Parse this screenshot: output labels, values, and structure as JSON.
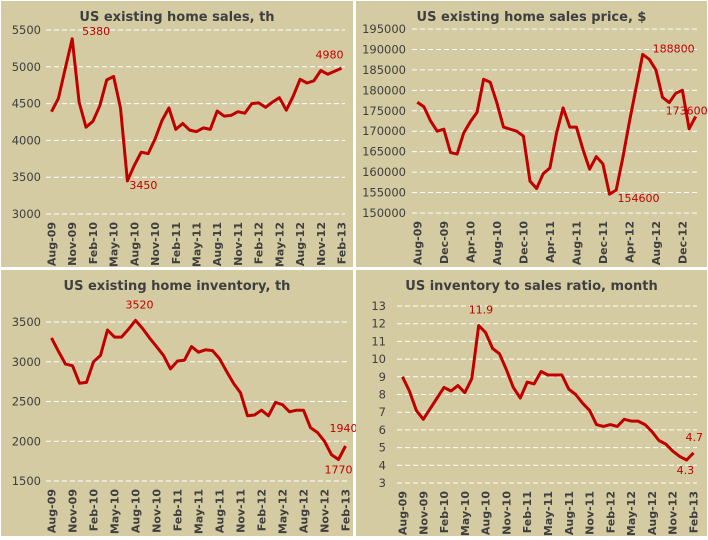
{
  "chart_data": [
    {
      "type": "line",
      "title": "US existing home sales, th",
      "ylim": [
        3000,
        5500
      ],
      "yticks": [
        3000,
        3500,
        4000,
        4500,
        5000,
        5500
      ],
      "grid": true,
      "start": "Aug-09",
      "tick_labels": [
        "Aug-09",
        "Nov-09",
        "Feb-10",
        "May-10",
        "Aug-10",
        "Nov-10",
        "Feb-11",
        "May-11",
        "Aug-11",
        "Nov-11",
        "Feb-12",
        "May-12",
        "Aug-12",
        "Nov-12",
        "Feb-13"
      ],
      "values": [
        4390,
        4570,
        4980,
        5380,
        4520,
        4180,
        4260,
        4470,
        4820,
        4870,
        4440,
        3450,
        3660,
        3840,
        3820,
        4020,
        4270,
        4440,
        4150,
        4230,
        4140,
        4120,
        4170,
        4150,
        4400,
        4330,
        4340,
        4390,
        4370,
        4500,
        4510,
        4450,
        4520,
        4580,
        4410,
        4600,
        4830,
        4780,
        4810,
        4950,
        4900,
        4940,
        4980
      ],
      "annotations": [
        {
          "index": 3,
          "text": "5380"
        },
        {
          "index": 11,
          "text": "3450"
        },
        {
          "index": 42,
          "text": "4980"
        }
      ],
      "line_color": "#c00000"
    },
    {
      "type": "line",
      "title": "US existing home sales price, $",
      "ylim": [
        150000,
        195000
      ],
      "yticks": [
        150000,
        155000,
        160000,
        165000,
        170000,
        175000,
        180000,
        185000,
        190000,
        195000
      ],
      "grid": true,
      "start": "Aug-09",
      "tick_labels": [
        "Aug-09",
        "Dec-09",
        "Apr-10",
        "Aug-10",
        "Dec-10",
        "Apr-11",
        "Aug-11",
        "Dec-11",
        "Apr-12",
        "Aug-12",
        "Dec-12"
      ],
      "values": [
        177100,
        176000,
        172500,
        170000,
        170500,
        164800,
        164400,
        169600,
        172300,
        174600,
        182700,
        182000,
        177000,
        171000,
        170500,
        170000,
        168800,
        157800,
        156000,
        159600,
        161000,
        169500,
        175700,
        171000,
        171000,
        165500,
        160700,
        163800,
        162000,
        154600,
        155600,
        163500,
        172300,
        180500,
        188800,
        187600,
        185000,
        178300,
        177000,
        179300,
        180000,
        170600,
        173600
      ],
      "annotations": [
        {
          "index": 34,
          "text": "188800"
        },
        {
          "index": 29,
          "text": "154600"
        },
        {
          "index": 42,
          "text": "173600"
        }
      ],
      "line_color": "#c00000"
    },
    {
      "type": "line",
      "title": "US existing home inventory, th",
      "ylim": [
        1500,
        3500
      ],
      "yticks": [
        1500,
        2000,
        2500,
        3000,
        3500
      ],
      "grid": true,
      "start": "Aug-09",
      "tick_labels": [
        "Aug-09",
        "Nov-09",
        "Feb-10",
        "May-10",
        "Aug-10",
        "Nov-10",
        "Feb-11",
        "May-11",
        "Aug-11",
        "Nov-11",
        "Feb-12",
        "May-12",
        "Aug-12",
        "Nov-12",
        "Feb-13"
      ],
      "values": [
        3300,
        3130,
        2970,
        2950,
        2730,
        2740,
        3000,
        3080,
        3400,
        3310,
        3310,
        3410,
        3520,
        3420,
        3300,
        3190,
        3080,
        2910,
        3010,
        3020,
        3190,
        3120,
        3150,
        3140,
        3040,
        2880,
        2730,
        2610,
        2320,
        2330,
        2390,
        2320,
        2490,
        2460,
        2370,
        2390,
        2390,
        2170,
        2110,
        2000,
        1830,
        1770,
        1940
      ],
      "annotations": [
        {
          "index": 12,
          "text": "3520"
        },
        {
          "index": 41,
          "text": "1770"
        },
        {
          "index": 42,
          "text": "1940"
        }
      ],
      "line_color": "#c00000"
    },
    {
      "type": "line",
      "title": "US inventory to sales ratio, month",
      "ylim": [
        3,
        13
      ],
      "yticks": [
        3,
        4,
        5,
        6,
        7,
        8,
        9,
        10,
        11,
        12,
        13
      ],
      "grid": true,
      "start": "Aug-09",
      "tick_labels": [
        "Aug-09",
        "Nov-09",
        "Feb-10",
        "May-10",
        "Aug-10",
        "Nov-10",
        "Feb-11",
        "May-11",
        "Aug-11",
        "Nov-11",
        "Feb-12",
        "May-12",
        "Aug-12",
        "Nov-12",
        "Feb-13"
      ],
      "values": [
        9.0,
        8.2,
        7.1,
        6.6,
        7.2,
        7.8,
        8.4,
        8.2,
        8.5,
        8.1,
        8.9,
        11.9,
        11.5,
        10.6,
        10.3,
        9.4,
        8.4,
        7.8,
        8.7,
        8.6,
        9.3,
        9.1,
        9.1,
        9.1,
        8.3,
        8.0,
        7.5,
        7.1,
        6.3,
        6.2,
        6.3,
        6.2,
        6.6,
        6.5,
        6.5,
        6.3,
        5.9,
        5.4,
        5.2,
        4.8,
        4.5,
        4.3,
        4.7
      ],
      "annotations": [
        {
          "index": 11,
          "text": "11.9"
        },
        {
          "index": 41,
          "text": "4.3"
        },
        {
          "index": 42,
          "text": "4.7"
        }
      ],
      "line_color": "#c00000"
    }
  ]
}
